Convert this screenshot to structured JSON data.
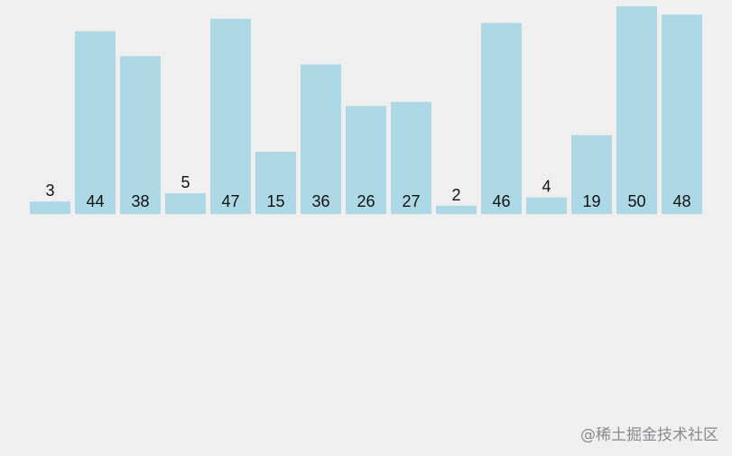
{
  "chart_data": {
    "type": "bar",
    "values": [
      3,
      44,
      38,
      5,
      47,
      15,
      36,
      26,
      27,
      2,
      46,
      4,
      19,
      50,
      48
    ],
    "color": "#add8e6",
    "watermark": "@稀土掘金技术社区"
  }
}
